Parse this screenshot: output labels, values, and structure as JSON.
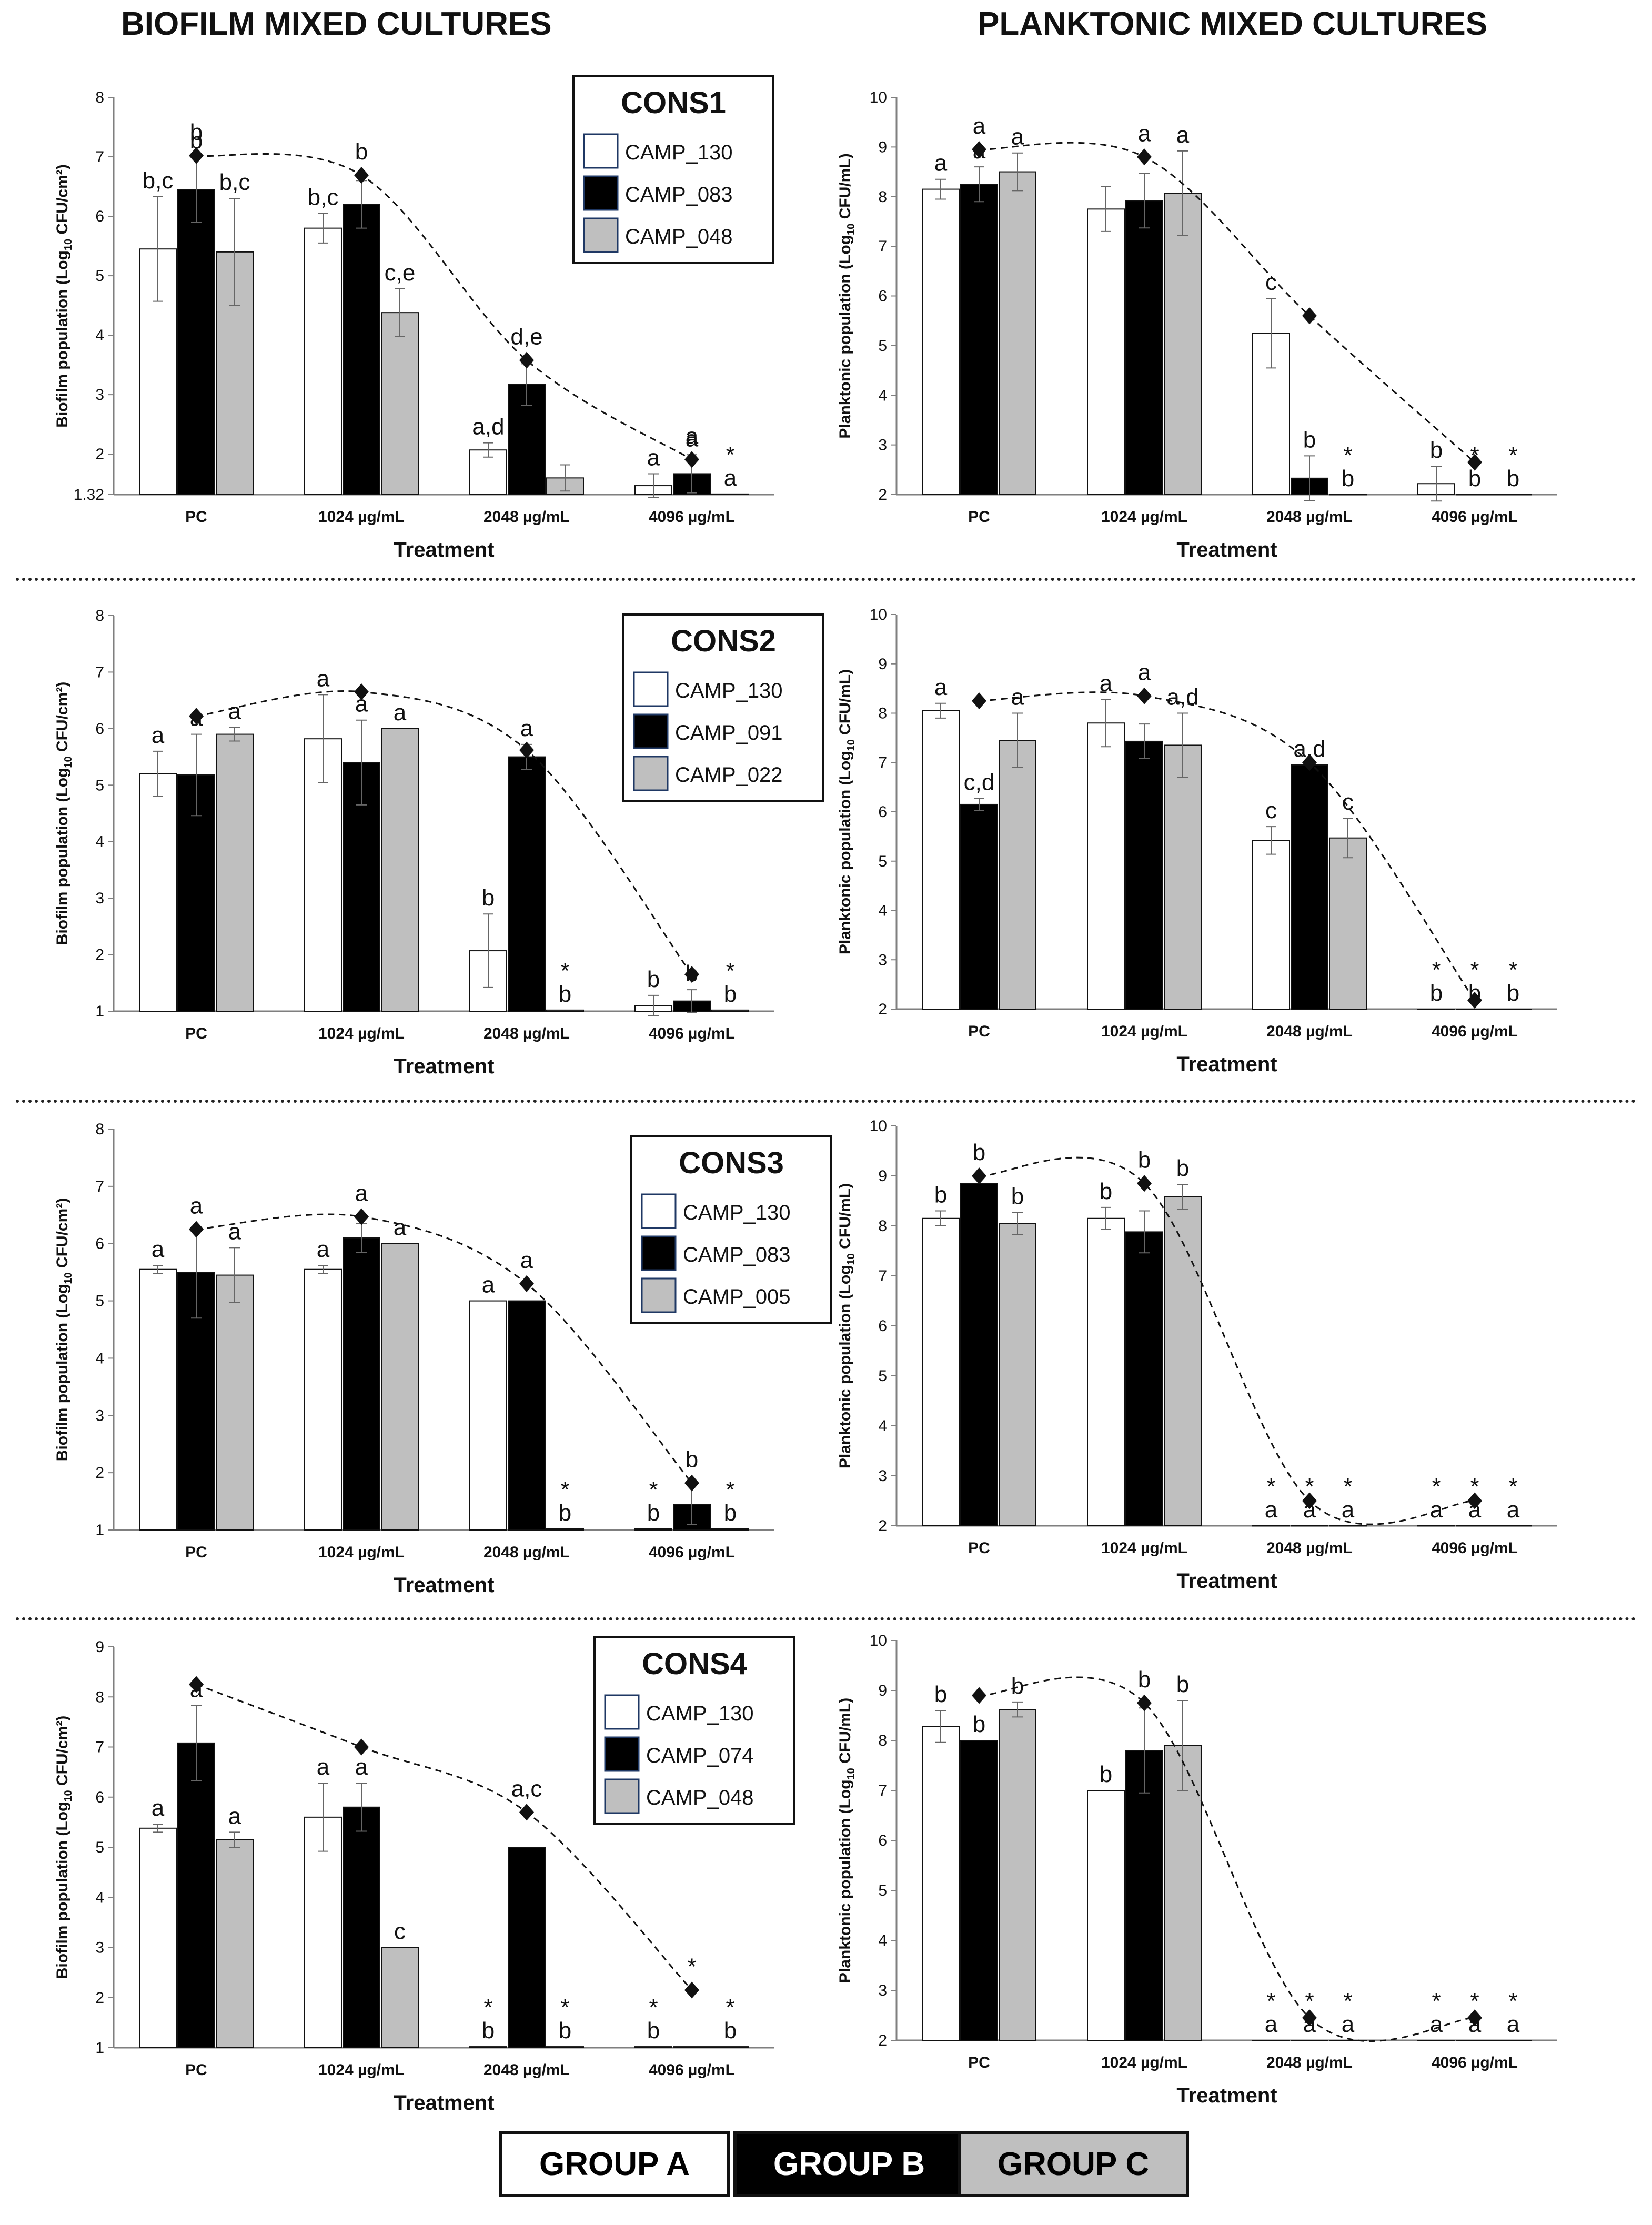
{
  "headers": {
    "left": "BIOFILM MIXED CULTURES",
    "right": "PLANKTONIC MIXED CULTURES"
  },
  "groups": [
    {
      "label": "GROUP A",
      "color": "#ffffff",
      "text_color": "#000000"
    },
    {
      "label": "GROUP B",
      "color": "#000000",
      "text_color": "#ffffff"
    },
    {
      "label": "GROUP C",
      "color": "#bfbfbf",
      "text_color": "#000000"
    }
  ],
  "colors": {
    "groupA": "#ffffff",
    "groupB": "#000000",
    "groupC": "#bfbfbf",
    "axis": "#7f7f7f",
    "grid": "#d9d9d9"
  },
  "chart_data": [
    {
      "id": "cons1-biofilm",
      "type": "bar",
      "xlabel": "Treatment",
      "ylabel": "Biofilm population (Log10 CFU/cm²)",
      "ylim": [
        1.32,
        8
      ],
      "yticks": [
        "1.32",
        "2",
        "3",
        "4",
        "5",
        "6",
        "7",
        "8"
      ],
      "categories": [
        "PC",
        "1024 µg/mL",
        "2048 µg/mL",
        "4096 µg/mL"
      ],
      "legend": {
        "title": "CONS1",
        "entries": [
          "CAMP_130",
          "CAMP_083",
          "CAMP_048"
        ]
      },
      "series": [
        {
          "name": "CAMP_130",
          "values": [
            5.45,
            5.8,
            2.07,
            1.47
          ],
          "errors": [
            0.88,
            0.25,
            0.12,
            0.2
          ],
          "labels": [
            "b,c",
            "b,c",
            "a,d",
            "a"
          ]
        },
        {
          "name": "CAMP_083",
          "values": [
            6.45,
            6.2,
            3.17,
            1.67
          ],
          "errors": [
            0.55,
            0.4,
            0.35,
            0.32
          ],
          "labels": [
            "b",
            "",
            "",
            "a"
          ]
        },
        {
          "name": "CAMP_048",
          "values": [
            5.4,
            4.38,
            1.6,
            1.33
          ],
          "errors": [
            0.9,
            0.4,
            0.22,
            0
          ],
          "labels": [
            "b,c",
            "c,e",
            "",
            "*\na"
          ]
        }
      ],
      "mixed": {
        "name": "mixed culture",
        "values": [
          7.02,
          6.69,
          3.58,
          1.91
        ],
        "labels": [
          "b",
          "b",
          "d,e",
          "a"
        ]
      }
    },
    {
      "id": "cons1-planktonic",
      "type": "bar",
      "xlabel": "Treatment",
      "ylabel": "Planktonic population (Log10 CFU/mL)",
      "ylim": [
        2,
        10
      ],
      "yticks": [
        "2",
        "3",
        "4",
        "5",
        "6",
        "7",
        "8",
        "9",
        "10"
      ],
      "categories": [
        "PC",
        "1024 µg/mL",
        "2048 µg/mL",
        "4096 µg/mL"
      ],
      "series": [
        {
          "name": "CAMP_130",
          "values": [
            8.15,
            7.75,
            5.25,
            2.22
          ],
          "errors": [
            0.2,
            0.45,
            0.7,
            0.35
          ],
          "labels": [
            "a",
            "",
            "c",
            "b"
          ]
        },
        {
          "name": "CAMP_083",
          "values": [
            8.25,
            7.92,
            2.33,
            2
          ],
          "errors": [
            0.35,
            0.55,
            0.45,
            0
          ],
          "labels": [
            "a",
            "",
            "b",
            "*\nb"
          ]
        },
        {
          "name": "CAMP_048",
          "values": [
            8.5,
            8.07,
            2,
            2
          ],
          "errors": [
            0.38,
            0.85,
            0,
            0
          ],
          "labels": [
            "a",
            "a",
            "*\nb",
            "*\nb"
          ]
        }
      ],
      "mixed": {
        "name": "mixed culture",
        "values": [
          8.95,
          8.8,
          5.6,
          2.65
        ],
        "labels": [
          "a",
          "a",
          "",
          ""
        ]
      }
    },
    {
      "id": "cons2-biofilm",
      "type": "bar",
      "xlabel": "Treatment",
      "ylabel": "Biofilm population (Log10 CFU/cm²)",
      "ylim": [
        1,
        8
      ],
      "yticks": [
        "1",
        "2",
        "3",
        "4",
        "5",
        "6",
        "7",
        "8"
      ],
      "categories": [
        "PC",
        "1024 µg/mL",
        "2048 µg/mL",
        "4096 µg/mL"
      ],
      "legend": {
        "title": "CONS2",
        "entries": [
          "CAMP_130",
          "CAMP_091",
          "CAMP_022"
        ]
      },
      "series": [
        {
          "name": "CAMP_130",
          "values": [
            5.2,
            5.82,
            2.07,
            1.1
          ],
          "errors": [
            0.4,
            0.78,
            0.65,
            0.18
          ],
          "labels": [
            "a",
            "a",
            "b",
            "b"
          ]
        },
        {
          "name": "CAMP_091",
          "values": [
            5.18,
            5.4,
            5.5,
            1.18
          ],
          "errors": [
            0.72,
            0.75,
            0.22,
            0.2
          ],
          "labels": [
            "a",
            "a",
            "a",
            "b"
          ]
        },
        {
          "name": "CAMP_022",
          "values": [
            5.9,
            6.0,
            1.02,
            1.02
          ],
          "errors": [
            0.12,
            0,
            0,
            0
          ],
          "labels": [
            "a",
            "a",
            "*\nb",
            "*\nb"
          ]
        }
      ],
      "mixed": {
        "name": "mixed culture",
        "values": [
          6.22,
          6.65,
          5.62,
          1.65
        ],
        "labels": [
          "",
          "",
          "",
          ""
        ]
      }
    },
    {
      "id": "cons2-planktonic",
      "type": "bar",
      "xlabel": "Treatment",
      "ylabel": "Planktonic population (Log10 CFU/mL)",
      "ylim": [
        2,
        10
      ],
      "yticks": [
        "2",
        "3",
        "4",
        "5",
        "6",
        "7",
        "8",
        "9",
        "10"
      ],
      "categories": [
        "PC",
        "1024 µg/mL",
        "2048 µg/mL",
        "4096 µg/mL"
      ],
      "series": [
        {
          "name": "CAMP_130",
          "values": [
            8.05,
            7.8,
            5.42,
            2
          ],
          "errors": [
            0.15,
            0.48,
            0.28,
            0
          ],
          "labels": [
            "a",
            "a",
            "c",
            "*\nb"
          ]
        },
        {
          "name": "CAMP_091",
          "values": [
            6.15,
            7.43,
            6.95,
            2
          ],
          "errors": [
            0.12,
            0.35,
            0,
            0
          ],
          "labels": [
            "c,d",
            "",
            "a,d",
            "*\nb"
          ]
        },
        {
          "name": "CAMP_022",
          "values": [
            7.45,
            7.35,
            5.47,
            2
          ],
          "errors": [
            0.55,
            0.65,
            0.4,
            0
          ],
          "labels": [
            "a",
            "a,d",
            "c",
            "*\nb"
          ]
        }
      ],
      "mixed": {
        "name": "mixed culture",
        "values": [
          8.25,
          8.35,
          7.0,
          2.18
        ],
        "labels": [
          "",
          "a",
          "",
          ""
        ]
      }
    },
    {
      "id": "cons3-biofilm",
      "type": "bar",
      "xlabel": "Treatment",
      "ylabel": "Biofilm population (Log10 CFU/cm²)",
      "ylim": [
        1,
        8
      ],
      "yticks": [
        "1",
        "2",
        "3",
        "4",
        "5",
        "6",
        "7",
        "8"
      ],
      "categories": [
        "PC",
        "1024 µg/mL",
        "2048 µg/mL",
        "4096 µg/mL"
      ],
      "legend": {
        "title": "CONS3",
        "entries": [
          "CAMP_130",
          "CAMP_083",
          "CAMP_005"
        ]
      },
      "series": [
        {
          "name": "CAMP_130",
          "values": [
            5.55,
            5.55,
            5.0,
            1.02
          ],
          "errors": [
            0.07,
            0.07,
            0,
            0
          ],
          "labels": [
            "a",
            "a",
            "a",
            "*\nb"
          ]
        },
        {
          "name": "CAMP_083",
          "values": [
            5.5,
            6.1,
            5.0,
            1.45
          ],
          "errors": [
            0.8,
            0.25,
            0,
            0.35
          ],
          "labels": [
            "",
            "",
            "",
            ""
          ]
        },
        {
          "name": "CAMP_005",
          "values": [
            5.45,
            6.0,
            1.02,
            1.02
          ],
          "errors": [
            0.48,
            0,
            0,
            0
          ],
          "labels": [
            "a",
            "a",
            "*\nb",
            "*\nb"
          ]
        }
      ],
      "mixed": {
        "name": "mixed culture",
        "values": [
          6.25,
          6.47,
          5.3,
          1.82
        ],
        "labels": [
          "a",
          "a",
          "a",
          "b"
        ]
      }
    },
    {
      "id": "cons3-planktonic",
      "type": "bar",
      "xlabel": "Treatment",
      "ylabel": "Planktonic population (Log10 CFU/mL)",
      "ylim": [
        2,
        10
      ],
      "yticks": [
        "2",
        "3",
        "4",
        "5",
        "6",
        "7",
        "8",
        "9",
        "10"
      ],
      "categories": [
        "PC",
        "1024 µg/mL",
        "2048 µg/mL",
        "4096 µg/mL"
      ],
      "series": [
        {
          "name": "CAMP_130",
          "values": [
            8.15,
            8.15,
            2,
            2
          ],
          "errors": [
            0.15,
            0.22,
            0,
            0
          ],
          "labels": [
            "b",
            "b",
            "*\na",
            "*\na"
          ]
        },
        {
          "name": "CAMP_083",
          "values": [
            8.85,
            7.88,
            2,
            2
          ],
          "errors": [
            0,
            0.42,
            0,
            0
          ],
          "labels": [
            "",
            "",
            "*\na",
            "*\na"
          ]
        },
        {
          "name": "CAMP_005",
          "values": [
            8.05,
            8.58,
            2,
            2
          ],
          "errors": [
            0.22,
            0.25,
            0,
            0
          ],
          "labels": [
            "b",
            "b",
            "*\na",
            "*\na"
          ]
        }
      ],
      "mixed": {
        "name": "mixed culture",
        "values": [
          9.0,
          8.85,
          2.5,
          2.5
        ],
        "labels": [
          "b",
          "b",
          "",
          ""
        ]
      }
    },
    {
      "id": "cons4-biofilm",
      "type": "bar",
      "xlabel": "Treatment",
      "ylabel": "Biofilm population (Log10 CFU/cm²)",
      "ylim": [
        1,
        9
      ],
      "yticks": [
        "1",
        "2",
        "3",
        "4",
        "5",
        "6",
        "7",
        "8",
        "9"
      ],
      "categories": [
        "PC",
        "1024 µg/mL",
        "2048 µg/mL",
        "4096 µg/mL"
      ],
      "legend": {
        "title": "CONS4",
        "entries": [
          "CAMP_130",
          "CAMP_074",
          "CAMP_048"
        ]
      },
      "series": [
        {
          "name": "CAMP_130",
          "values": [
            5.38,
            5.6,
            1.02,
            1.02
          ],
          "errors": [
            0.08,
            0.68,
            0,
            0
          ],
          "labels": [
            "a",
            "a",
            "*\nb",
            "*\nb"
          ]
        },
        {
          "name": "CAMP_074",
          "values": [
            7.08,
            5.8,
            5.0,
            1.02
          ],
          "errors": [
            0.75,
            0.48,
            0,
            0
          ],
          "labels": [
            "a",
            "a",
            "",
            ""
          ]
        },
        {
          "name": "CAMP_048",
          "values": [
            5.15,
            3.0,
            1.02,
            1.02
          ],
          "errors": [
            0.15,
            0,
            0,
            0
          ],
          "labels": [
            "a",
            "c",
            "*\nb",
            "*\nb"
          ]
        }
      ],
      "mixed": {
        "name": "mixed culture",
        "values": [
          8.25,
          7.0,
          5.7,
          2.15
        ],
        "labels": [
          "",
          "",
          "a,c",
          "*"
        ]
      }
    },
    {
      "id": "cons4-planktonic",
      "type": "bar",
      "xlabel": "Treatment",
      "ylabel": "Planktonic population (Log10 CFU/mL)",
      "ylim": [
        2,
        10
      ],
      "yticks": [
        "2",
        "3",
        "4",
        "5",
        "6",
        "7",
        "8",
        "9",
        "10"
      ],
      "categories": [
        "PC",
        "1024 µg/mL",
        "2048 µg/mL",
        "4096 µg/mL"
      ],
      "series": [
        {
          "name": "CAMP_130",
          "values": [
            8.28,
            7.0,
            2,
            2
          ],
          "errors": [
            0.32,
            0,
            0,
            0
          ],
          "labels": [
            "b",
            "b",
            "*\na",
            "*\na"
          ]
        },
        {
          "name": "CAMP_074",
          "values": [
            8.0,
            7.8,
            2,
            2
          ],
          "errors": [
            0,
            0.85,
            0,
            0
          ],
          "labels": [
            "b",
            "",
            "*\na",
            "*\na"
          ]
        },
        {
          "name": "CAMP_048",
          "values": [
            8.62,
            7.9,
            2,
            2
          ],
          "errors": [
            0.15,
            0.9,
            0,
            0
          ],
          "labels": [
            "b",
            "b",
            "*\na",
            "*\na"
          ]
        }
      ],
      "mixed": {
        "name": "mixed culture",
        "values": [
          8.9,
          8.75,
          2.45,
          2.45
        ],
        "labels": [
          "",
          "b",
          "",
          ""
        ]
      }
    }
  ]
}
